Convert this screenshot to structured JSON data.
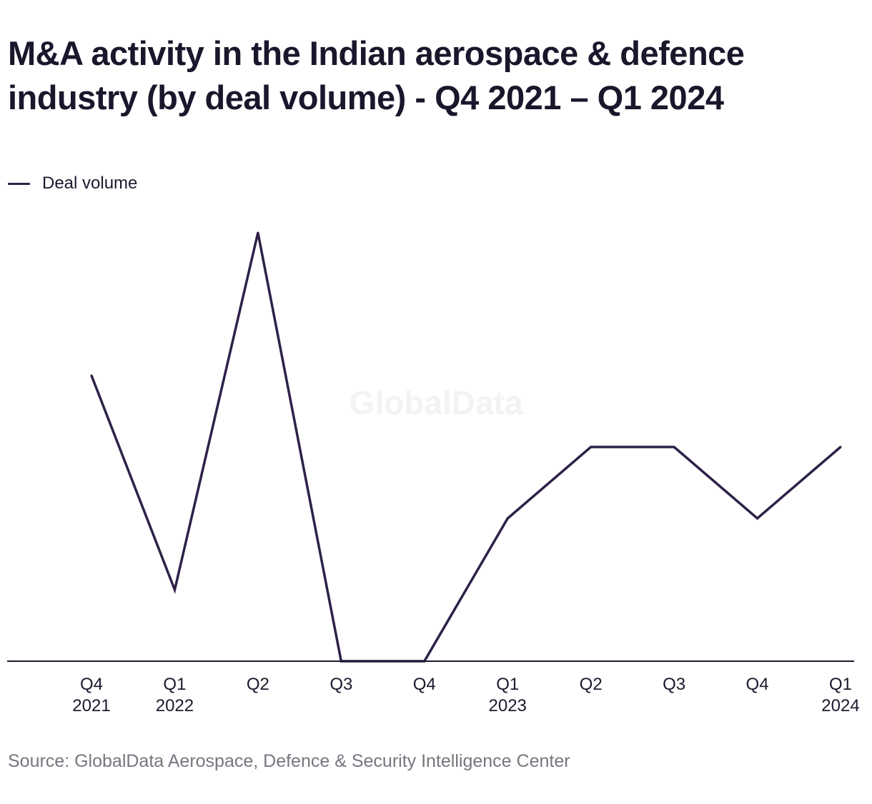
{
  "title": "M&A activity in the Indian aerospace & defence industry (by deal volume) - Q4 2021 – Q1 2024",
  "watermark": "GlobalData",
  "source": "Source: GlobalData Aerospace, Defence & Security Intelligence Center",
  "colors": {
    "line": "#2e2148",
    "axis": "#1b1a2e",
    "watermark": "#f3f3f5"
  },
  "chart_data": {
    "type": "line",
    "x": [
      "Q4 2021",
      "Q1 2022",
      "Q2 2022",
      "Q3 2022",
      "Q4 2022",
      "Q1 2023",
      "Q2 2023",
      "Q3 2023",
      "Q4 2023",
      "Q1 2024"
    ],
    "tick_labels": [
      [
        "Q4",
        "2021"
      ],
      [
        "Q1",
        "2022"
      ],
      [
        "Q2",
        ""
      ],
      [
        "Q3",
        ""
      ],
      [
        "Q4",
        ""
      ],
      [
        "Q1",
        "2023"
      ],
      [
        "Q2",
        ""
      ],
      [
        "Q3",
        ""
      ],
      [
        "Q4",
        ""
      ],
      [
        "Q1",
        "2024"
      ]
    ],
    "series": [
      {
        "name": "Deal volume",
        "values": [
          4,
          1,
          6,
          0,
          0,
          2,
          3,
          3,
          2,
          3
        ]
      }
    ],
    "ylim": [
      0,
      6
    ],
    "grid": false,
    "legend": "top-left"
  }
}
